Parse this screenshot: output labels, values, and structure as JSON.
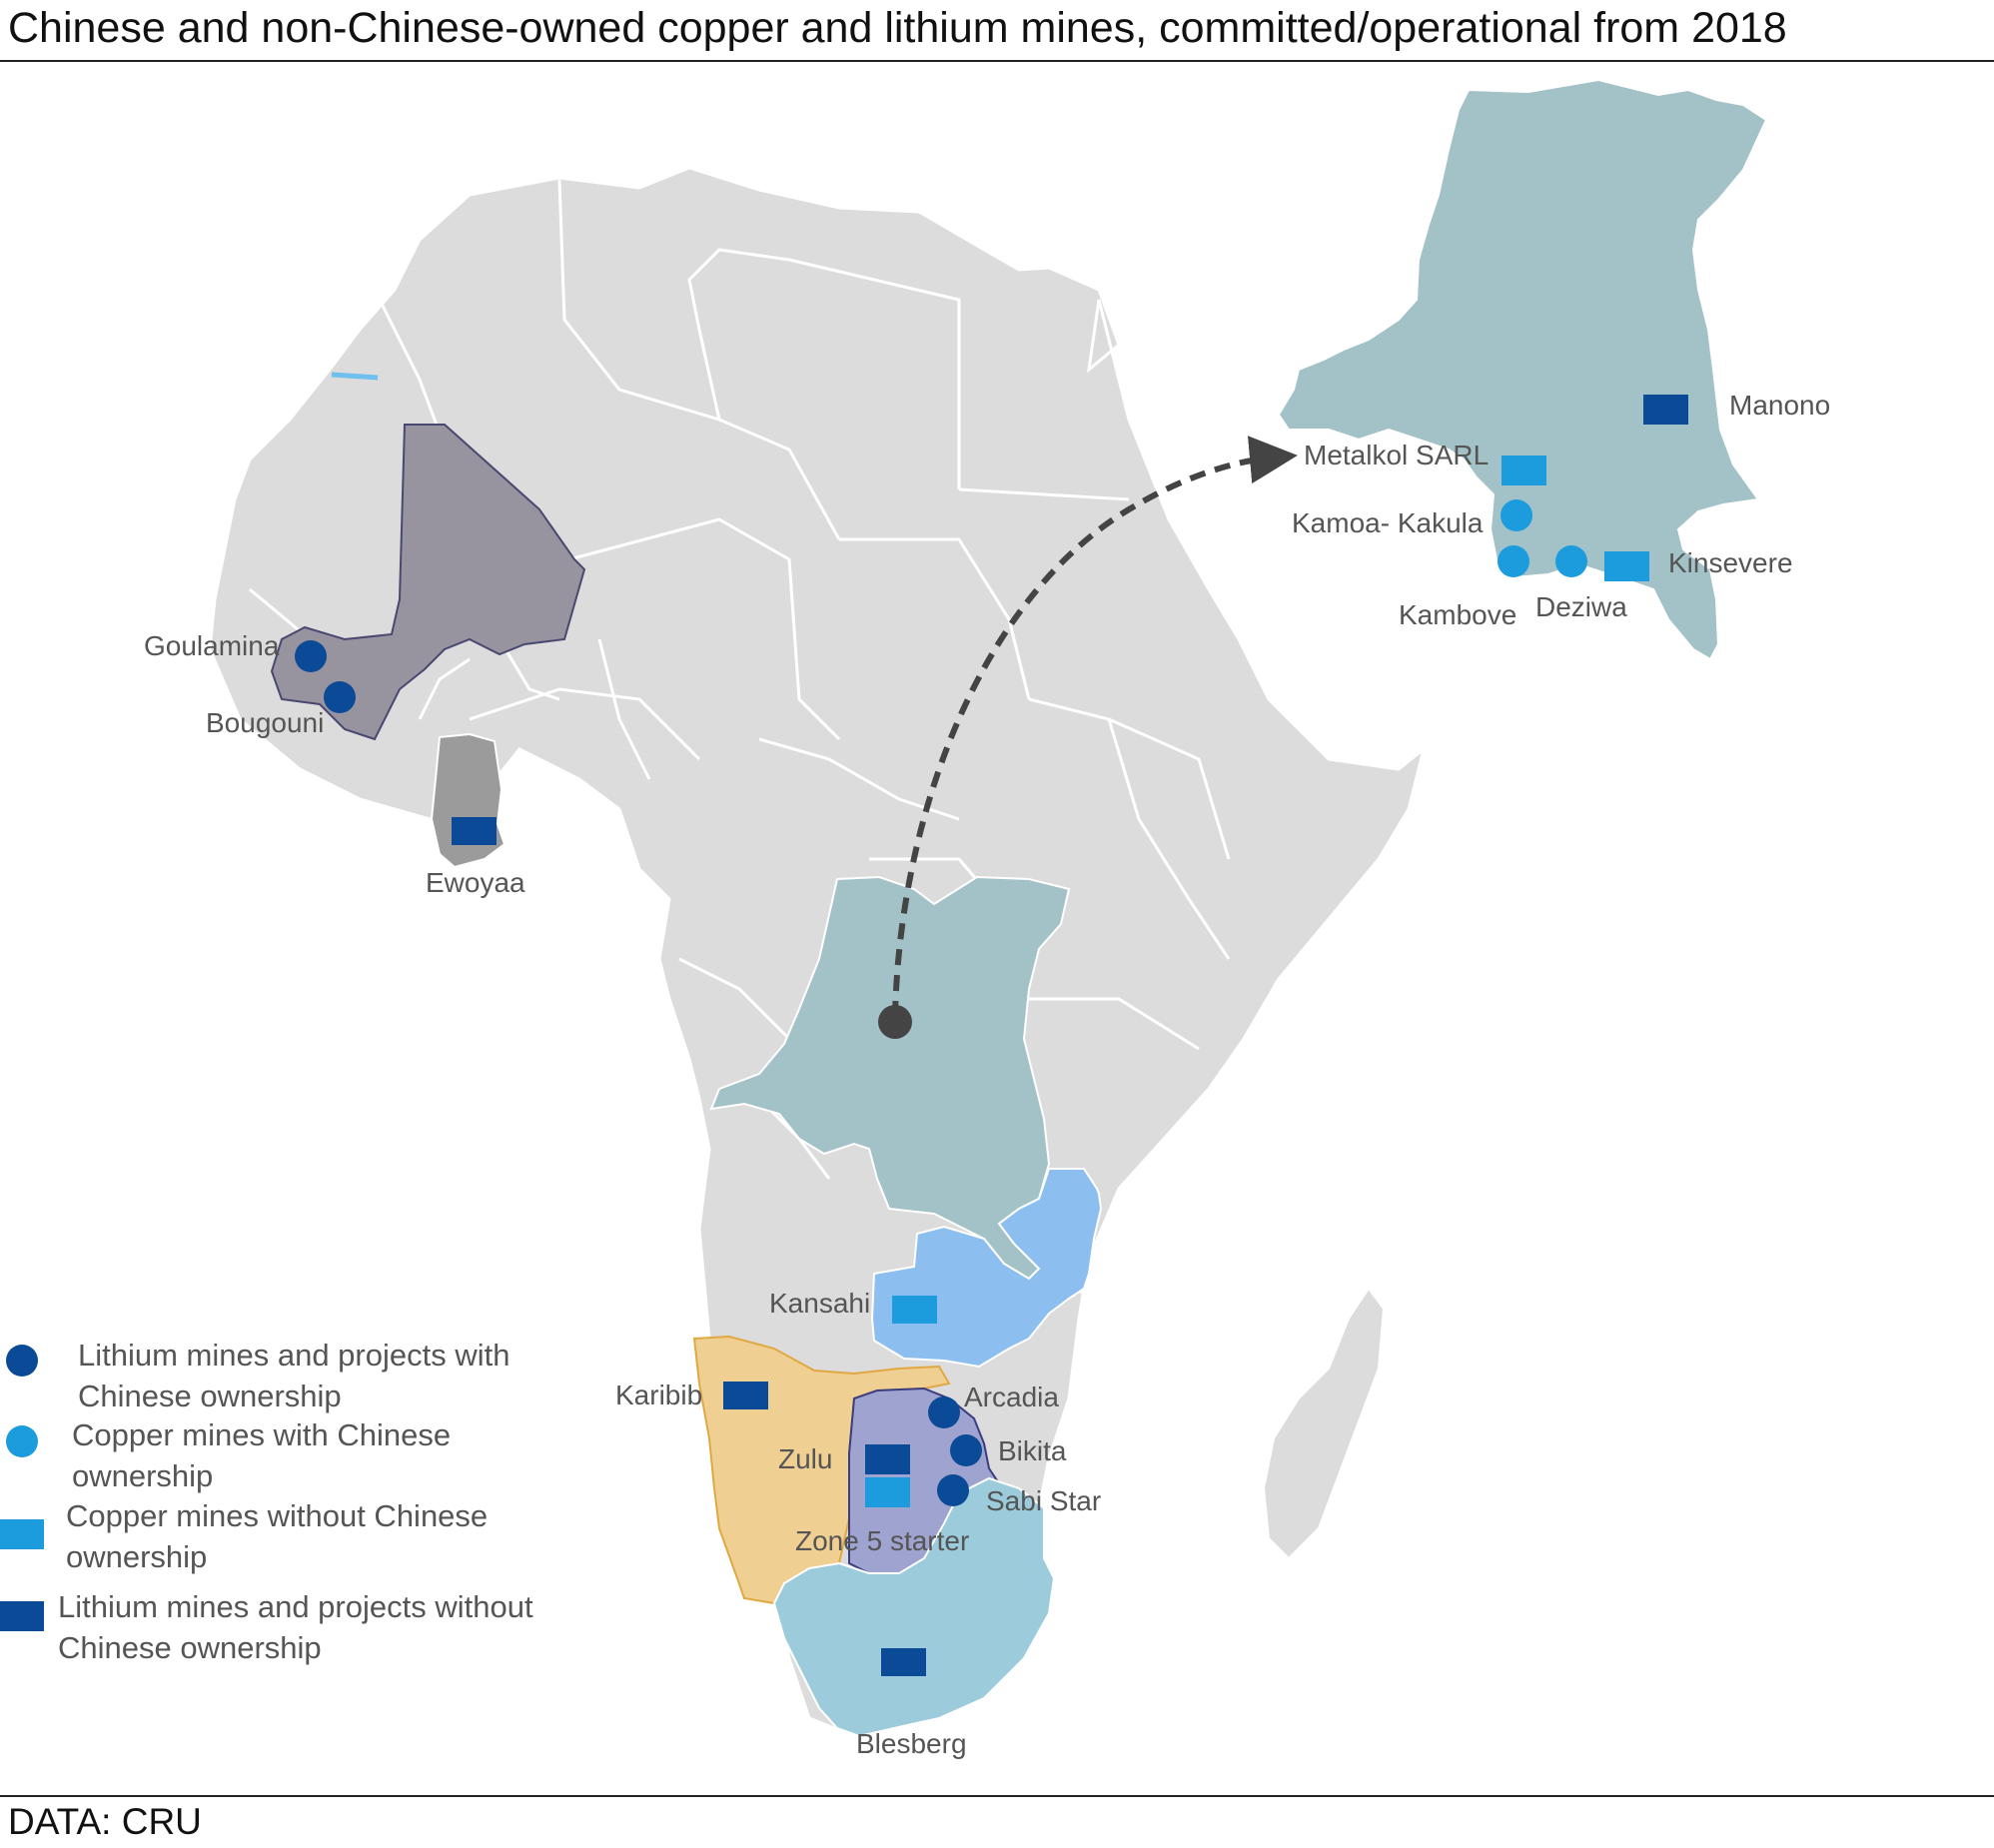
{
  "title": "Chinese and non-Chinese-owned copper and lithium mines, committed/operational from 2018",
  "source": "DATA: CRU",
  "colors": {
    "land": "#dcdcdc",
    "border": "#ffffff",
    "drc": "#a3c2c8",
    "zambia": "#8cbff0",
    "namibia": "#f0cf92",
    "zimbabwe": "#9ea3cf",
    "south_africa": "#9ccbdb",
    "mali": "#98949f",
    "ghana": "#9b9b9b",
    "lithium_chinese": "#0b4a96",
    "copper_chinese": "#1c9bdd",
    "copper_non_chinese": "#1c9bdd",
    "lithium_non_chinese": "#0b4a96",
    "arrow": "#444444"
  },
  "legend": [
    {
      "marker": "circle",
      "color": "#0b4a96",
      "line1": "Lithium mines and projects with",
      "line2": "Chinese ownership"
    },
    {
      "marker": "circle",
      "color": "#1c9bdd",
      "line1": "Copper mines with Chinese",
      "line2": "ownership"
    },
    {
      "marker": "rect",
      "color": "#1c9bdd",
      "line1": "Copper mines without  Chinese",
      "line2": "ownership"
    },
    {
      "marker": "rect",
      "color": "#0b4a96",
      "line1": "Lithium mines and projects without",
      "line2": "Chinese ownership"
    }
  ],
  "mines": [
    {
      "name": "Goulamina",
      "type": "lithium_chinese"
    },
    {
      "name": "Bougouni",
      "type": "lithium_chinese"
    },
    {
      "name": "Ewoyaa",
      "type": "lithium_non_chinese"
    },
    {
      "name": "Kansahi",
      "type": "copper_non_chinese"
    },
    {
      "name": "Karibib",
      "type": "lithium_non_chinese"
    },
    {
      "name": "Zulu",
      "type": "lithium_non_chinese"
    },
    {
      "name": "Zone 5 starter",
      "type": "copper_non_chinese"
    },
    {
      "name": "Arcadia",
      "type": "lithium_chinese"
    },
    {
      "name": "Bikita",
      "type": "lithium_chinese"
    },
    {
      "name": "Sabi Star",
      "type": "lithium_chinese"
    },
    {
      "name": "Blesberg",
      "type": "lithium_non_chinese"
    }
  ],
  "inset_mines": [
    {
      "name": "Manono",
      "type": "lithium_non_chinese"
    },
    {
      "name": "Metalkol  SARL",
      "type": "copper_non_chinese"
    },
    {
      "name": "Kamoa- Kakula",
      "type": "copper_chinese"
    },
    {
      "name": "Kambove",
      "type": "copper_chinese"
    },
    {
      "name": "Deziwa",
      "type": "copper_chinese"
    },
    {
      "name": "Kinsevere",
      "type": "copper_non_chinese"
    }
  ]
}
